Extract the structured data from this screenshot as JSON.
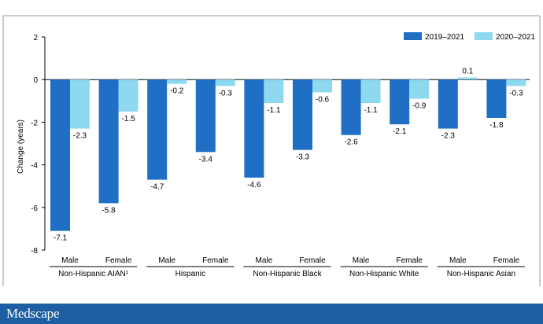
{
  "brand": {
    "name": "Medscape",
    "bar_color": "#1d5fa2",
    "text_color": "#ffffff"
  },
  "chart_data": {
    "type": "bar",
    "title": "",
    "xlabel": "",
    "ylabel": "Change (years)",
    "ylim": [
      -8,
      2
    ],
    "yticks": [
      2,
      0,
      -2,
      -4,
      -6,
      -8
    ],
    "grid": false,
    "legend_position": "top-right",
    "groups": [
      "Non-Hispanic AIAN¹",
      "Hispanic",
      "Non-Hispanic Black",
      "Non-Hispanic White",
      "Non-Hispanic Asian"
    ],
    "subcategories": [
      "Male",
      "Female"
    ],
    "series": [
      {
        "name": "2019–2021",
        "color": "#1f6fc5",
        "values": [
          -7.1,
          -5.8,
          -4.7,
          -3.4,
          -4.6,
          -3.3,
          -2.6,
          -2.1,
          -2.3,
          -1.8
        ],
        "labels": [
          "-7.1",
          "-5.8",
          "-4.7",
          "-3.4",
          "-4.6",
          "-3.3",
          "-2.6",
          "-2.1",
          "-2.3",
          "-1.8"
        ]
      },
      {
        "name": "2020–2021",
        "color": "#8ed8f0",
        "values": [
          -2.3,
          -1.5,
          -0.2,
          -0.3,
          -1.1,
          -0.6,
          -1.1,
          -0.9,
          0.1,
          -0.3
        ],
        "labels": [
          "-2.3",
          "-1.5",
          "-0.2",
          "-0.3",
          "-1.1",
          "-0.6",
          "-1.1",
          "-0.9",
          "0.1",
          "-0.3"
        ]
      }
    ]
  }
}
